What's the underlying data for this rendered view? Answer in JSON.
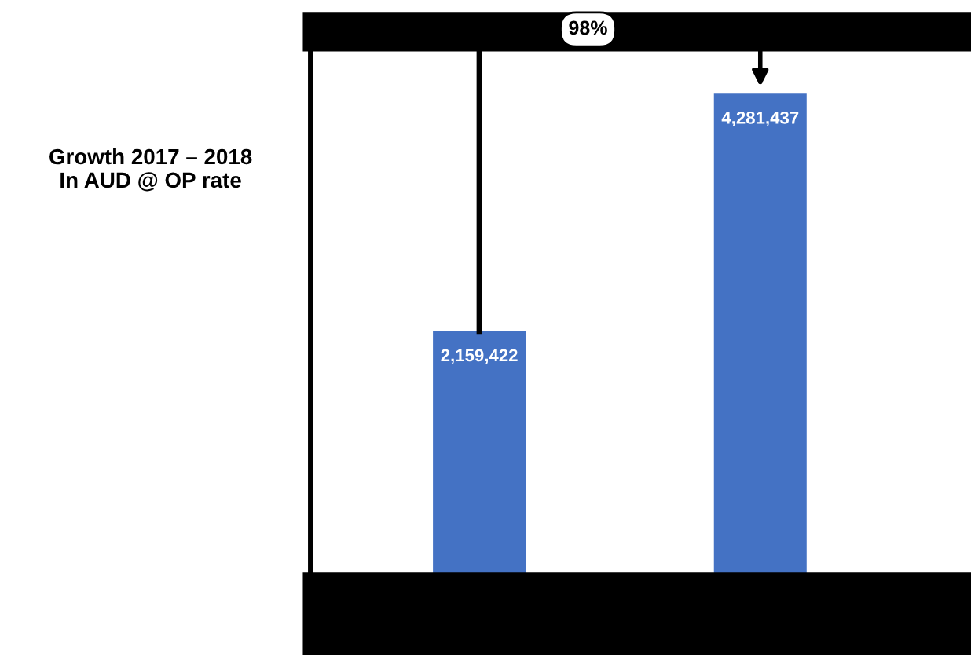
{
  "chart_data": {
    "type": "bar",
    "title": "Growth 2017 – 2018\nIn AUD @ OP rate",
    "categories": [
      null,
      null
    ],
    "values": [
      2159422,
      4281437
    ],
    "color": "#4472c4",
    "data_labels": true,
    "value_labels": [
      "2,159,422",
      "4,281,437"
    ],
    "annotations": [
      "98%"
    ],
    "grid": false
  }
}
